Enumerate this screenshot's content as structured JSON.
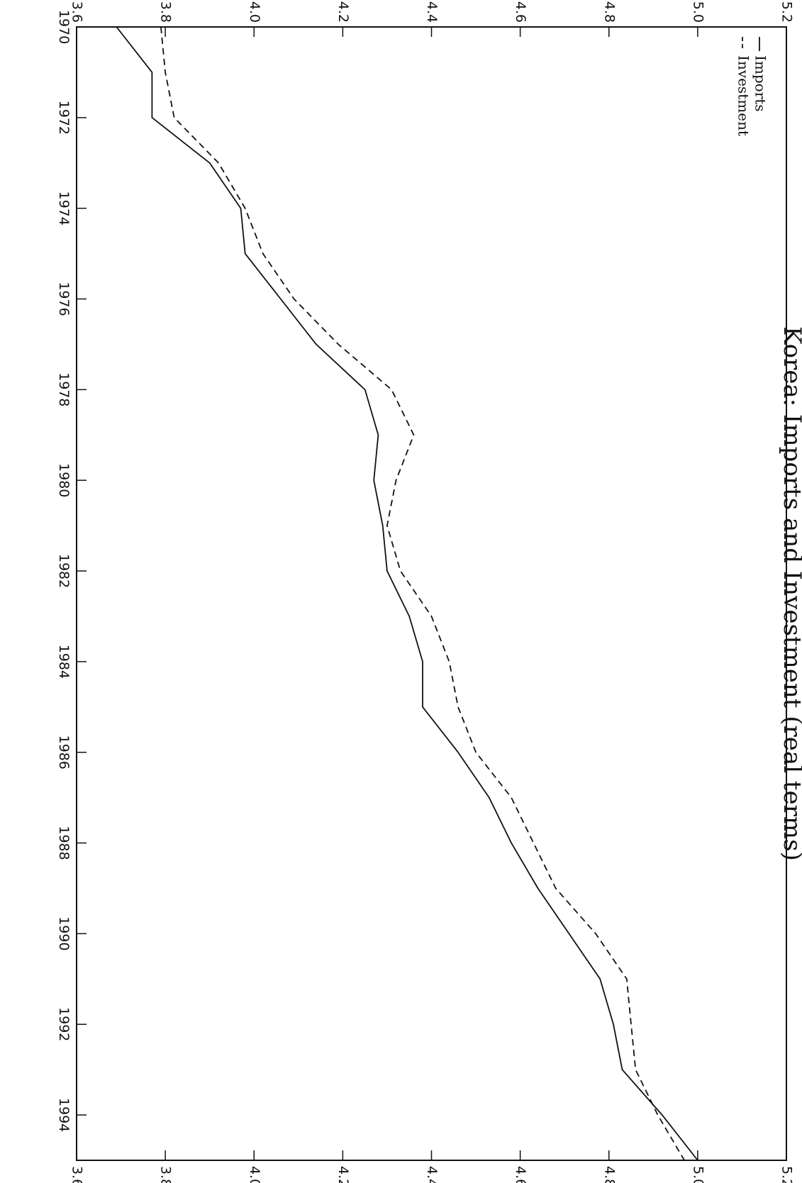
{
  "chart_data": {
    "type": "line",
    "orientation": "rotated-90-clockwise",
    "title": "Korea: Imports and Investment (real terms)",
    "xlabel": "",
    "ylabel": "",
    "xlim": [
      1970,
      1995
    ],
    "ylim": [
      3.6,
      5.2
    ],
    "x_ticks": [
      "1970",
      "1972",
      "1974",
      "1976",
      "1978",
      "1980",
      "1982",
      "1984",
      "1986",
      "1988",
      "1990",
      "1992",
      "1994"
    ],
    "y_ticks": [
      "3.6",
      "3.8",
      "4.0",
      "4.2",
      "4.4",
      "4.6",
      "4.8",
      "5.0",
      "5.2"
    ],
    "legend_position": "top-left",
    "grid": false,
    "x": [
      1970,
      1971,
      1972,
      1973,
      1974,
      1975,
      1976,
      1977,
      1978,
      1979,
      1980,
      1981,
      1982,
      1983,
      1984,
      1985,
      1986,
      1987,
      1988,
      1989,
      1990,
      1991,
      1992,
      1993,
      1994,
      1995
    ],
    "series": [
      {
        "name": "Imports",
        "style": "solid",
        "values": [
          3.69,
          3.77,
          3.77,
          3.9,
          3.97,
          3.98,
          4.06,
          4.14,
          4.25,
          4.28,
          4.27,
          4.29,
          4.3,
          4.35,
          4.38,
          4.38,
          4.46,
          4.53,
          4.58,
          4.64,
          4.71,
          4.78,
          4.81,
          4.83,
          4.92,
          5.0
        ]
      },
      {
        "name": "Investment",
        "style": "dashed",
        "values": [
          3.79,
          3.8,
          3.82,
          3.92,
          3.98,
          4.02,
          4.09,
          4.19,
          4.31,
          4.36,
          4.32,
          4.3,
          4.33,
          4.4,
          4.44,
          4.46,
          4.5,
          4.58,
          4.63,
          4.68,
          4.77,
          4.84,
          4.85,
          4.86,
          4.91,
          4.97
        ]
      }
    ]
  }
}
